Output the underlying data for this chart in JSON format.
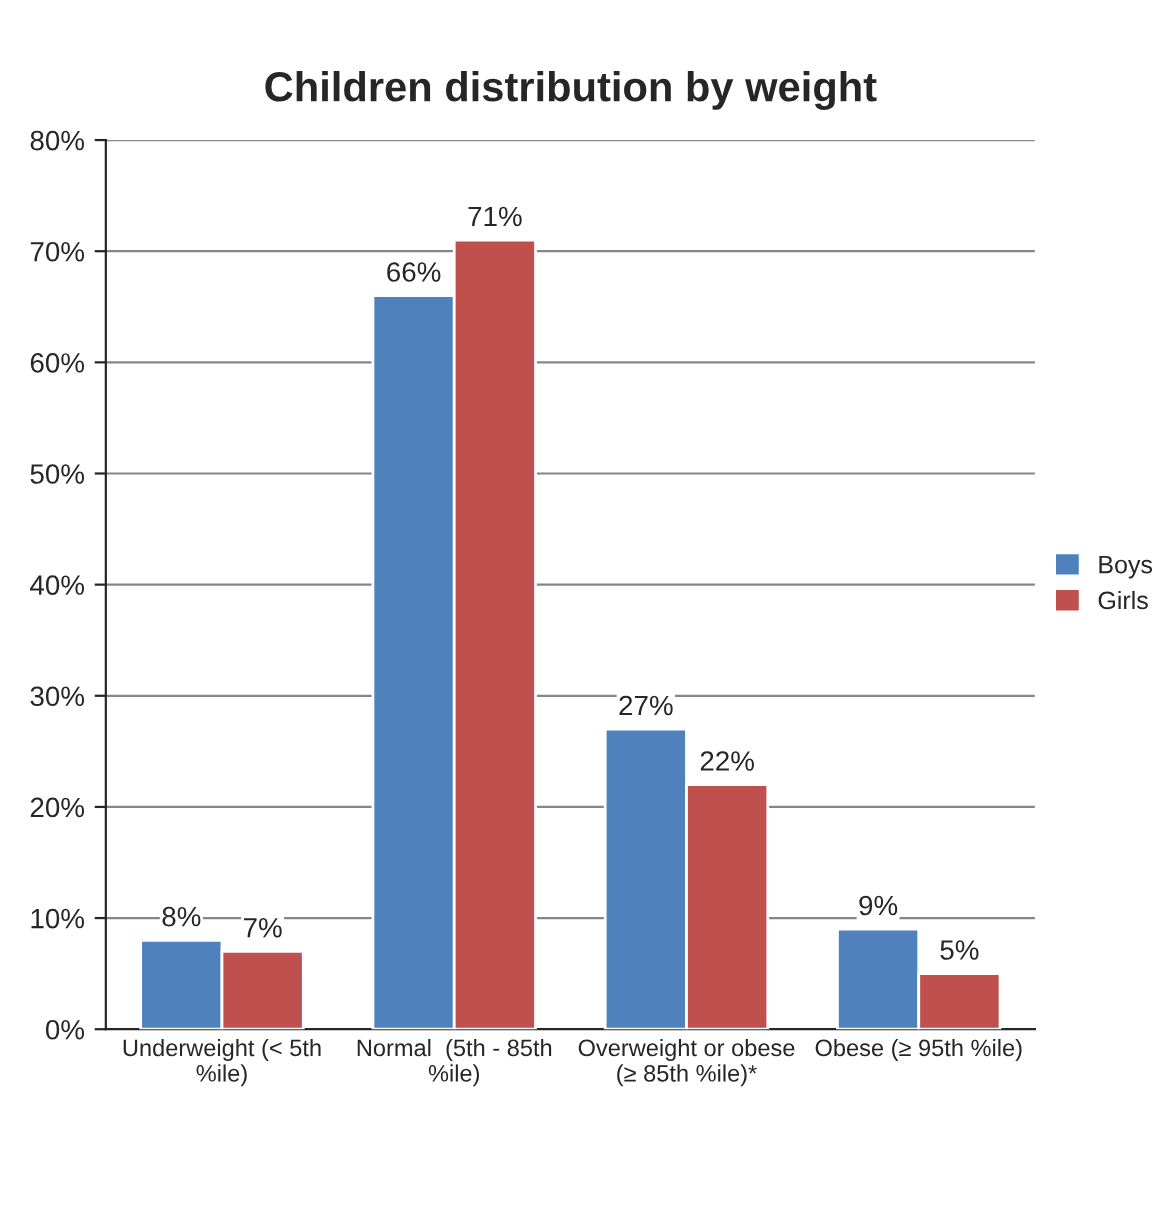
{
  "chart_data": {
    "type": "bar",
    "title": "Children distribution by weight",
    "categories": [
      "Underweight (< 5th %ile)",
      "Normal  (5th - 85th %ile)",
      "Overweight or obese (≥ 85th %ile)*",
      "Obese (≥ 95th %ile)"
    ],
    "series": [
      {
        "name": "Boys",
        "color": "#4f81bd",
        "values": [
          8,
          66,
          27,
          9
        ],
        "value_labels": [
          "8%",
          "66%",
          "27%",
          "9%"
        ]
      },
      {
        "name": "Girls",
        "color": "#c0504d",
        "values": [
          7,
          71,
          22,
          5
        ],
        "value_labels": [
          "7%",
          "71%",
          "22%",
          "5%"
        ]
      }
    ],
    "ylim": [
      0,
      80
    ],
    "yticks": [
      {
        "value": 0,
        "label": "0%"
      },
      {
        "value": 10,
        "label": "10%"
      },
      {
        "value": 20,
        "label": "20%"
      },
      {
        "value": 30,
        "label": "30%"
      },
      {
        "value": 40,
        "label": "40%"
      },
      {
        "value": 50,
        "label": "50%"
      },
      {
        "value": 60,
        "label": "60%"
      },
      {
        "value": 70,
        "label": "70%"
      },
      {
        "value": 80,
        "label": "80%"
      }
    ],
    "grid": "y",
    "legend": "right"
  }
}
